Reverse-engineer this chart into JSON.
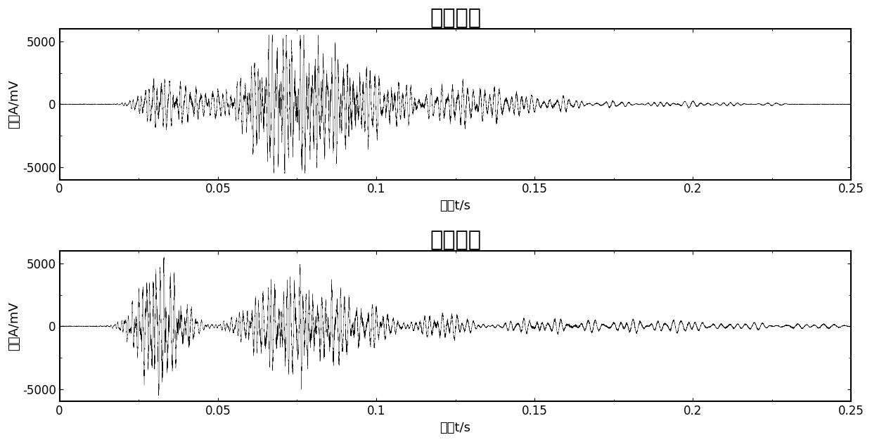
{
  "title1": "正常模式",
  "title2": "报警模式",
  "xlabel": "时间t/s",
  "ylabel": "幅值A/mV",
  "xlim": [
    0,
    0.25
  ],
  "ylim": [
    -6000,
    6000
  ],
  "yticks": [
    -5000,
    0,
    5000
  ],
  "xticks": [
    0,
    0.05,
    0.1,
    0.15,
    0.2,
    0.25
  ],
  "xtick_labels": [
    "0",
    "0.05",
    "0.1",
    "0.15",
    "0.2",
    "0.25"
  ],
  "sample_rate": 50000,
  "duration": 0.25,
  "line_color": "#000000",
  "background_color": "#ffffff",
  "title_fontsize": 22,
  "label_fontsize": 13,
  "tick_fontsize": 12
}
